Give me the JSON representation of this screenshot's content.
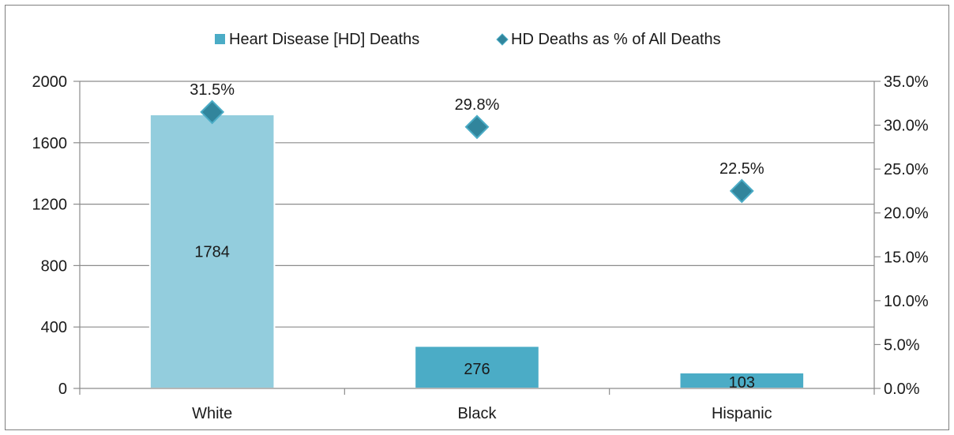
{
  "chart_data": {
    "type": "bar",
    "categories": [
      "White",
      "Black",
      "Hispanic"
    ],
    "series": [
      {
        "name": "Heart Disease [HD] Deaths",
        "type": "bar",
        "axis": "left",
        "values": [
          1784,
          276,
          103
        ],
        "labels": [
          "1784",
          "276",
          "103"
        ]
      },
      {
        "name": "HD Deaths as % of All Deaths",
        "type": "scatter",
        "axis": "right",
        "values": [
          31.5,
          29.8,
          22.5
        ],
        "labels": [
          "31.5%",
          "29.8%",
          "22.5%"
        ]
      }
    ],
    "ylim_left": [
      0,
      2000
    ],
    "yticks_left": [
      0,
      400,
      800,
      1200,
      1600,
      2000
    ],
    "ytick_labels_left": [
      "0",
      "400",
      "800",
      "1200",
      "1600",
      "2000"
    ],
    "ylim_right": [
      0,
      35
    ],
    "yticks_right": [
      0,
      5,
      10,
      15,
      20,
      25,
      30,
      35
    ],
    "ytick_labels_right": [
      "0.0%",
      "5.0%",
      "10.0%",
      "15.0%",
      "20.0%",
      "25.0%",
      "30.0%",
      "35.0%"
    ],
    "grid": true,
    "legend_position": "top",
    "colors": {
      "bar_white": "#93cddd",
      "bar_other": "#4bacc6",
      "marker": "#31859c",
      "marker_edge": "#4bacc6",
      "grid": "#8c8c8c"
    }
  }
}
